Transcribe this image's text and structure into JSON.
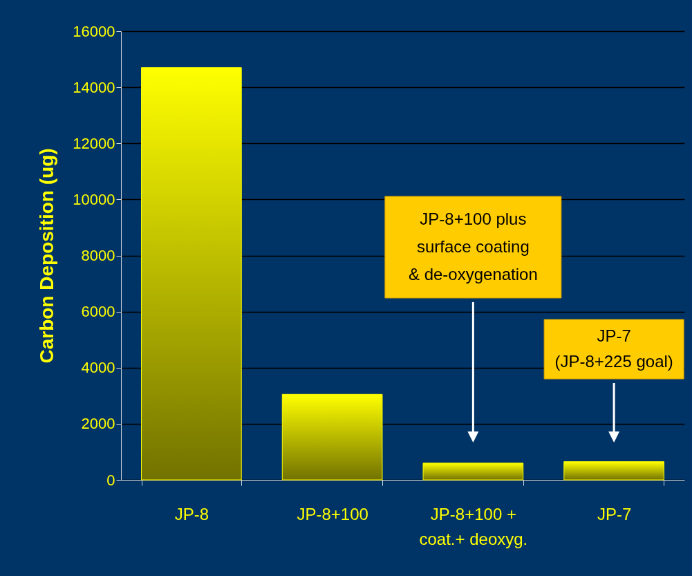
{
  "chart_data": {
    "type": "bar",
    "ylabel": "Carbon Deposition (ug)",
    "categories": [
      "JP-8",
      "JP-8+100",
      "JP-8+100 +\ncoat.+ deoxyg.",
      "JP-7"
    ],
    "values": [
      14700,
      3050,
      600,
      650
    ],
    "color": "#ffff00",
    "ylim": [
      0,
      16000
    ],
    "yticks": [
      0,
      2000,
      4000,
      6000,
      8000,
      10000,
      12000,
      14000,
      16000
    ],
    "grid": "y",
    "annotations": [
      "JP-8+100 plus\nsurface coating\n& de-oxygenation",
      "JP-7\n(JP-8+225 goal)"
    ]
  }
}
